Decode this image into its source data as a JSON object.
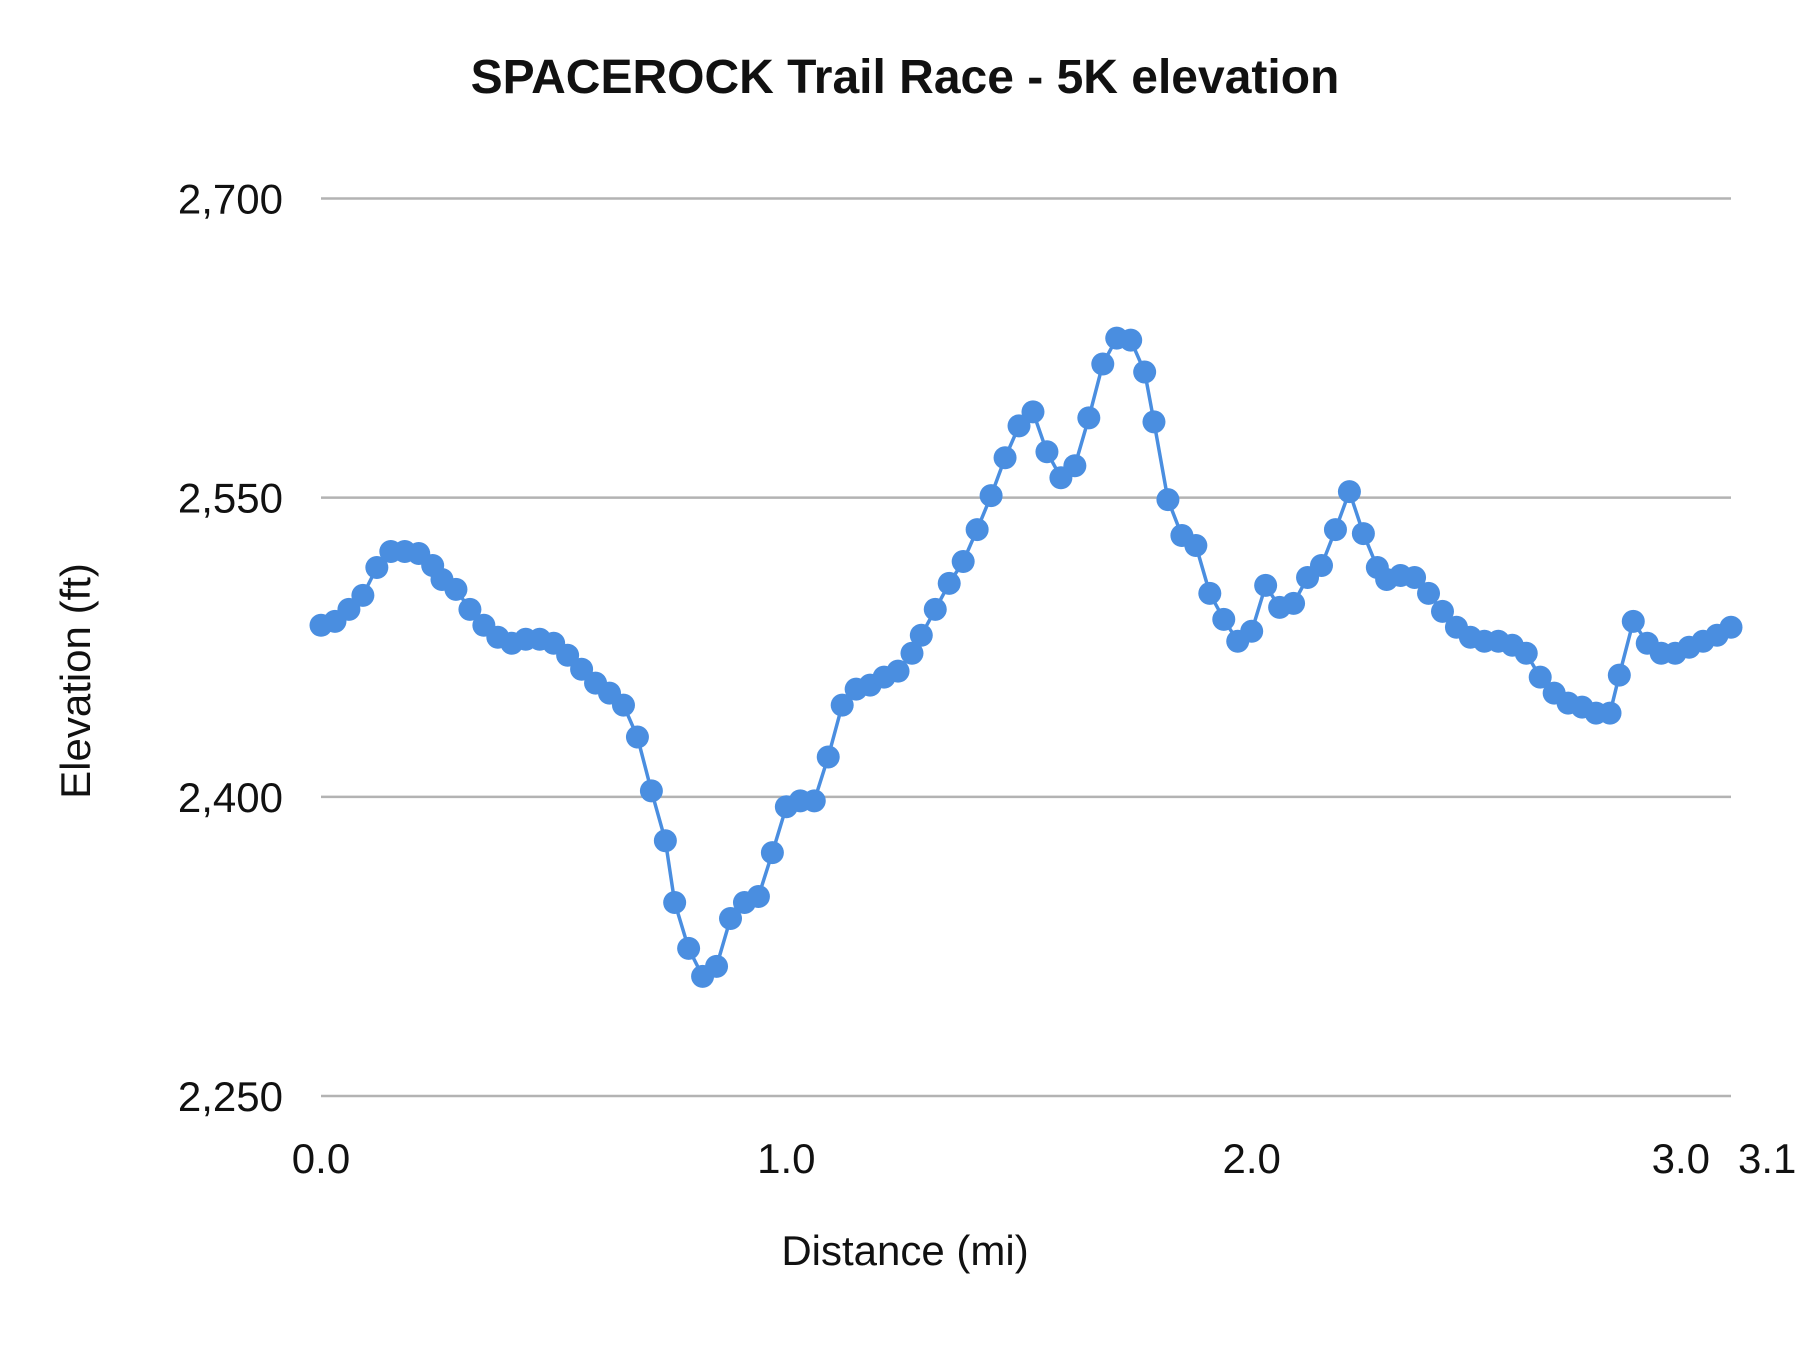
{
  "chart_data": {
    "type": "line",
    "title": "SPACEROCK Trail Race - 5K elevation",
    "xlabel": "Distance (mi)",
    "ylabel": "Elevation (ft)",
    "xlim": [
      0,
      3.03
    ],
    "ylim": [
      2250,
      2700
    ],
    "x_ticks": [
      "0.0",
      "1.0",
      "2.0",
      "3.0",
      "3.1"
    ],
    "x_tick_values": [
      0,
      1,
      2,
      3,
      3.03
    ],
    "y_ticks": [
      "2,250",
      "2,400",
      "2,550",
      "2,700"
    ],
    "y_tick_values": [
      2250,
      2400,
      2550,
      2700
    ],
    "grid": true,
    "markers": true,
    "color": "#4a8ee0",
    "x": [
      0,
      0.03,
      0.06,
      0.09,
      0.12,
      0.15,
      0.18,
      0.21,
      0.24,
      0.26,
      0.29,
      0.32,
      0.35,
      0.38,
      0.41,
      0.44,
      0.47,
      0.5,
      0.53,
      0.56,
      0.59,
      0.62,
      0.65,
      0.68,
      0.71,
      0.74,
      0.76,
      0.79,
      0.82,
      0.85,
      0.88,
      0.91,
      0.94,
      0.97,
      1.0,
      1.03,
      1.06,
      1.09,
      1.12,
      1.15,
      1.18,
      1.21,
      1.24,
      1.27,
      1.29,
      1.32,
      1.35,
      1.38,
      1.41,
      1.44,
      1.47,
      1.5,
      1.53,
      1.56,
      1.59,
      1.62,
      1.65,
      1.68,
      1.71,
      1.74,
      1.77,
      1.79,
      1.82,
      1.85,
      1.88,
      1.91,
      1.94,
      1.97,
      2.0,
      2.03,
      2.06,
      2.09,
      2.12,
      2.15,
      2.18,
      2.21,
      2.24,
      2.27,
      2.29,
      2.32,
      2.35,
      2.38,
      2.41,
      2.44,
      2.47,
      2.5,
      2.53,
      2.56,
      2.59,
      2.62,
      2.65,
      2.68,
      2.71,
      2.74,
      2.77,
      2.79,
      2.82,
      2.85,
      2.88,
      2.91,
      2.94,
      2.97,
      3.0,
      3.03
    ],
    "y": [
      2486,
      2488,
      2494,
      2501,
      2515,
      2523,
      2523,
      2522,
      2516,
      2509,
      2504,
      2494,
      2486,
      2480,
      2477,
      2479,
      2479,
      2477,
      2471,
      2464,
      2457,
      2452,
      2446,
      2430,
      2403,
      2378,
      2347,
      2324,
      2310,
      2315,
      2339,
      2347,
      2350,
      2372,
      2395,
      2398,
      2398,
      2420,
      2446,
      2454,
      2456,
      2460,
      2463,
      2472,
      2481,
      2494,
      2507,
      2518,
      2534,
      2551,
      2570,
      2586,
      2593,
      2573,
      2560,
      2566,
      2590,
      2617,
      2630,
      2629,
      2613,
      2588,
      2549,
      2531,
      2526,
      2502,
      2489,
      2478,
      2483,
      2506,
      2495,
      2497,
      2510,
      2516,
      2534,
      2553,
      2532,
      2515,
      2509,
      2511,
      2510,
      2502,
      2493,
      2485,
      2480,
      2478,
      2478,
      2476,
      2472,
      2460,
      2452,
      2447,
      2445,
      2442,
      2442,
      2461,
      2488,
      2477,
      2472,
      2472,
      2475,
      2478,
      2481,
      2485
    ]
  }
}
